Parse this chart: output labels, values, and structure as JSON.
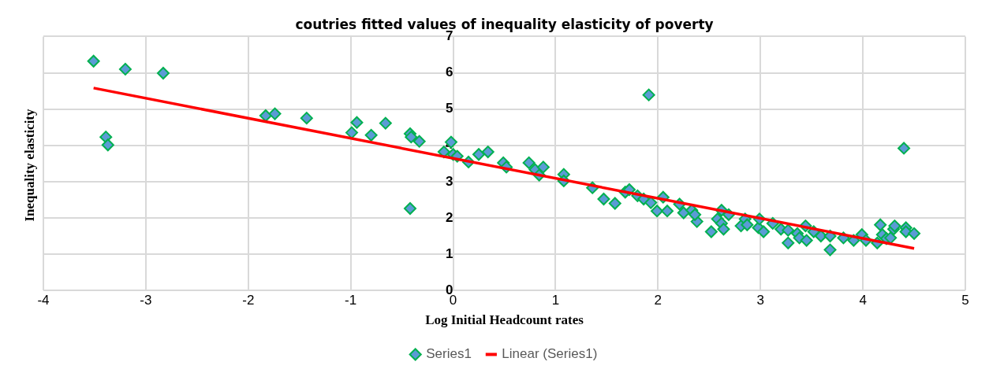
{
  "chart_data": {
    "type": "scatter",
    "title": "coutries fitted values of inequality elasticity of poverty",
    "xlabel": "Log Initial Headcount rates",
    "ylabel": "Inequality elasticity",
    "xlim": [
      -4,
      5
    ],
    "xticks": [
      -4,
      -3,
      -2,
      -1,
      0,
      1,
      2,
      3,
      4,
      5
    ],
    "ylim": [
      0,
      7
    ],
    "yticks": [
      0,
      1,
      2,
      3,
      4,
      5,
      6,
      7
    ],
    "grid": true,
    "legend": "bottom",
    "series": [
      {
        "name": "Series1",
        "marker": "diamond",
        "color": "#5b9bd5",
        "x": [
          -3.51,
          -3.2,
          -3.39,
          -3.37,
          -2.83,
          -1.83,
          -1.74,
          -1.43,
          -0.99,
          -0.94,
          -0.8,
          -0.66,
          -0.42,
          -0.41,
          -0.33,
          -0.42,
          -0.09,
          -0.02,
          0,
          0.04,
          0.15,
          0.25,
          0.34,
          0.49,
          0.52,
          0.74,
          0.8,
          0.84,
          0.88,
          1.08,
          1.08,
          1.36,
          1.47,
          1.58,
          1.68,
          1.72,
          1.8,
          1.86,
          1.91,
          1.93,
          1.99,
          2.05,
          2.09,
          2.21,
          2.25,
          2.33,
          2.38,
          2.36,
          2.52,
          2.58,
          2.62,
          2.62,
          2.64,
          2.69,
          2.81,
          2.85,
          2.87,
          2.98,
          2.99,
          3.03,
          3.12,
          3.2,
          3.27,
          3.27,
          3.36,
          3.38,
          3.44,
          3.45,
          3.52,
          3.59,
          3.68,
          3.68,
          3.81,
          3.91,
          3.99,
          4.03,
          4.14,
          4.17,
          4.19,
          4.23,
          4.27,
          4.3,
          4.31,
          4.4,
          4.42,
          4.42,
          4.5
        ],
        "values": [
          6.32,
          6.1,
          4.23,
          4.01,
          5.99,
          4.82,
          4.87,
          4.75,
          4.35,
          4.63,
          4.28,
          4.61,
          4.32,
          4.23,
          4.11,
          2.26,
          3.82,
          4.09,
          3.75,
          3.7,
          3.54,
          3.75,
          3.82,
          3.52,
          3.4,
          3.52,
          3.33,
          3.18,
          3.4,
          3.2,
          3.02,
          2.83,
          2.52,
          2.4,
          2.71,
          2.78,
          2.61,
          2.52,
          5.39,
          2.42,
          2.19,
          2.57,
          2.19,
          2.38,
          2.14,
          2.21,
          1.9,
          2.09,
          1.62,
          1.97,
          2.21,
          1.85,
          1.69,
          2.09,
          1.78,
          1.97,
          1.81,
          1.73,
          1.97,
          1.62,
          1.85,
          1.69,
          1.66,
          1.31,
          1.57,
          1.45,
          1.78,
          1.38,
          1.62,
          1.5,
          1.5,
          1.12,
          1.45,
          1.38,
          1.54,
          1.38,
          1.31,
          1.81,
          1.54,
          1.43,
          1.45,
          1.69,
          1.78,
          3.92,
          1.73,
          1.62,
          1.57
        ]
      },
      {
        "name": "Linear (Series1)",
        "type": "line",
        "marker": "none",
        "color": "#ff0000",
        "x": [
          -3.51,
          4.5
        ],
        "values": [
          5.58,
          1.16
        ]
      }
    ]
  }
}
